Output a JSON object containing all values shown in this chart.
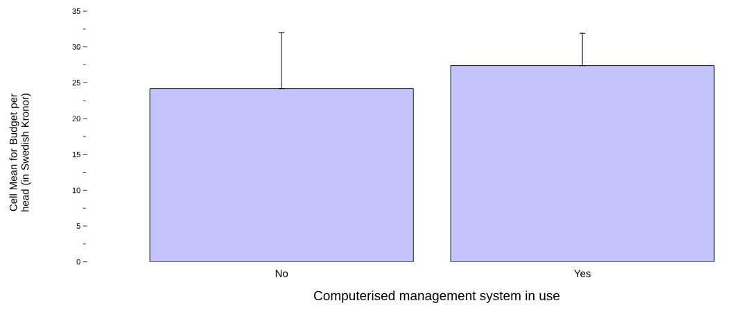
{
  "chart_data": {
    "type": "bar",
    "categories": [
      "No",
      "Yes"
    ],
    "values": [
      24.2,
      27.4
    ],
    "errors": [
      [
        24.2,
        32.0
      ],
      [
        27.4,
        31.9
      ]
    ],
    "color": "#c4c4fc",
    "xlabel": "Computerised management system in use",
    "ylabel": "Cell Mean for Budget per head (in Swedish Kronor)",
    "ylim": [
      0,
      35
    ],
    "yticks": [
      0,
      5,
      10,
      15,
      20,
      25,
      30,
      35
    ],
    "grid": false
  }
}
